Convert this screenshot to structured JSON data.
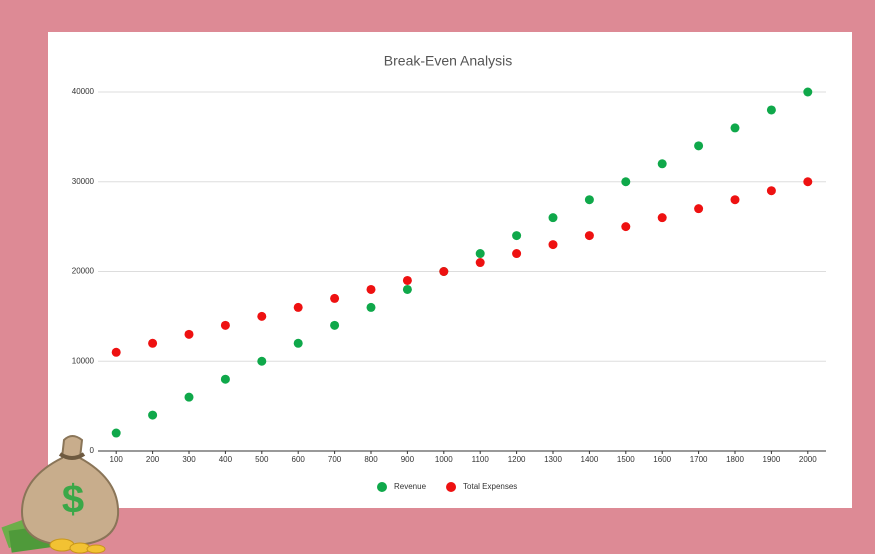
{
  "chart_data": {
    "type": "scatter",
    "title": "Break-Even Analysis",
    "x": [
      100,
      200,
      300,
      400,
      500,
      600,
      700,
      800,
      900,
      1000,
      1100,
      1200,
      1300,
      1400,
      1500,
      1600,
      1700,
      1800,
      1900,
      2000
    ],
    "xlim": [
      50,
      2050
    ],
    "xticks": [
      100,
      200,
      300,
      400,
      500,
      600,
      700,
      800,
      900,
      1000,
      1100,
      1200,
      1300,
      1400,
      1500,
      1600,
      1700,
      1800,
      1900,
      2000
    ],
    "ylim": [
      0,
      40000
    ],
    "yticks": [
      0,
      10000,
      20000,
      30000,
      40000
    ],
    "grid": true,
    "series": [
      {
        "name": "Revenue",
        "color": "#0fa84a",
        "values": [
          2000,
          4000,
          6000,
          8000,
          10000,
          12000,
          14000,
          16000,
          18000,
          20000,
          22000,
          24000,
          26000,
          28000,
          30000,
          32000,
          34000,
          36000,
          38000,
          40000
        ]
      },
      {
        "name": "Total Expenses",
        "color": "#ee1111",
        "values": [
          11000,
          12000,
          13000,
          14000,
          15000,
          16000,
          17000,
          18000,
          19000,
          20000,
          21000,
          22000,
          23000,
          24000,
          25000,
          26000,
          27000,
          28000,
          29000,
          30000
        ]
      }
    ]
  }
}
